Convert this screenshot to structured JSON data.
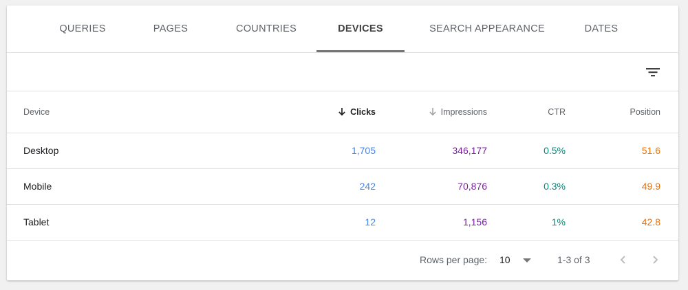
{
  "tabs": [
    {
      "label": "QUERIES"
    },
    {
      "label": "PAGES"
    },
    {
      "label": "COUNTRIES"
    },
    {
      "label": "DEVICES"
    },
    {
      "label": "SEARCH APPEARANCE"
    },
    {
      "label": "DATES"
    }
  ],
  "active_tab": "DEVICES",
  "table": {
    "columns": [
      "Device",
      "Clicks",
      "Impressions",
      "CTR",
      "Position"
    ],
    "sorted_column": "Clicks",
    "sort_direction": "descending",
    "rows": [
      {
        "device": "Desktop",
        "clicks": "1,705",
        "impressions": "346,177",
        "ctr": "0.5%",
        "position": "51.6"
      },
      {
        "device": "Mobile",
        "clicks": "242",
        "impressions": "70,876",
        "ctr": "0.3%",
        "position": "49.9"
      },
      {
        "device": "Tablet",
        "clicks": "12",
        "impressions": "1,156",
        "ctr": "1%",
        "position": "42.8"
      }
    ]
  },
  "pagination": {
    "rows_per_page_label": "Rows per page:",
    "rows_per_page": "10",
    "range": "1-3 of 3"
  },
  "colors": {
    "clicks": "#4285f4",
    "impressions": "#7b1fa2",
    "ctr": "#00897b",
    "position": "#e8710a"
  },
  "icons": [
    "filter-icon",
    "arrow-down-icon",
    "dropdown-arrow-icon",
    "chevron-left-icon",
    "chevron-right-icon"
  ]
}
